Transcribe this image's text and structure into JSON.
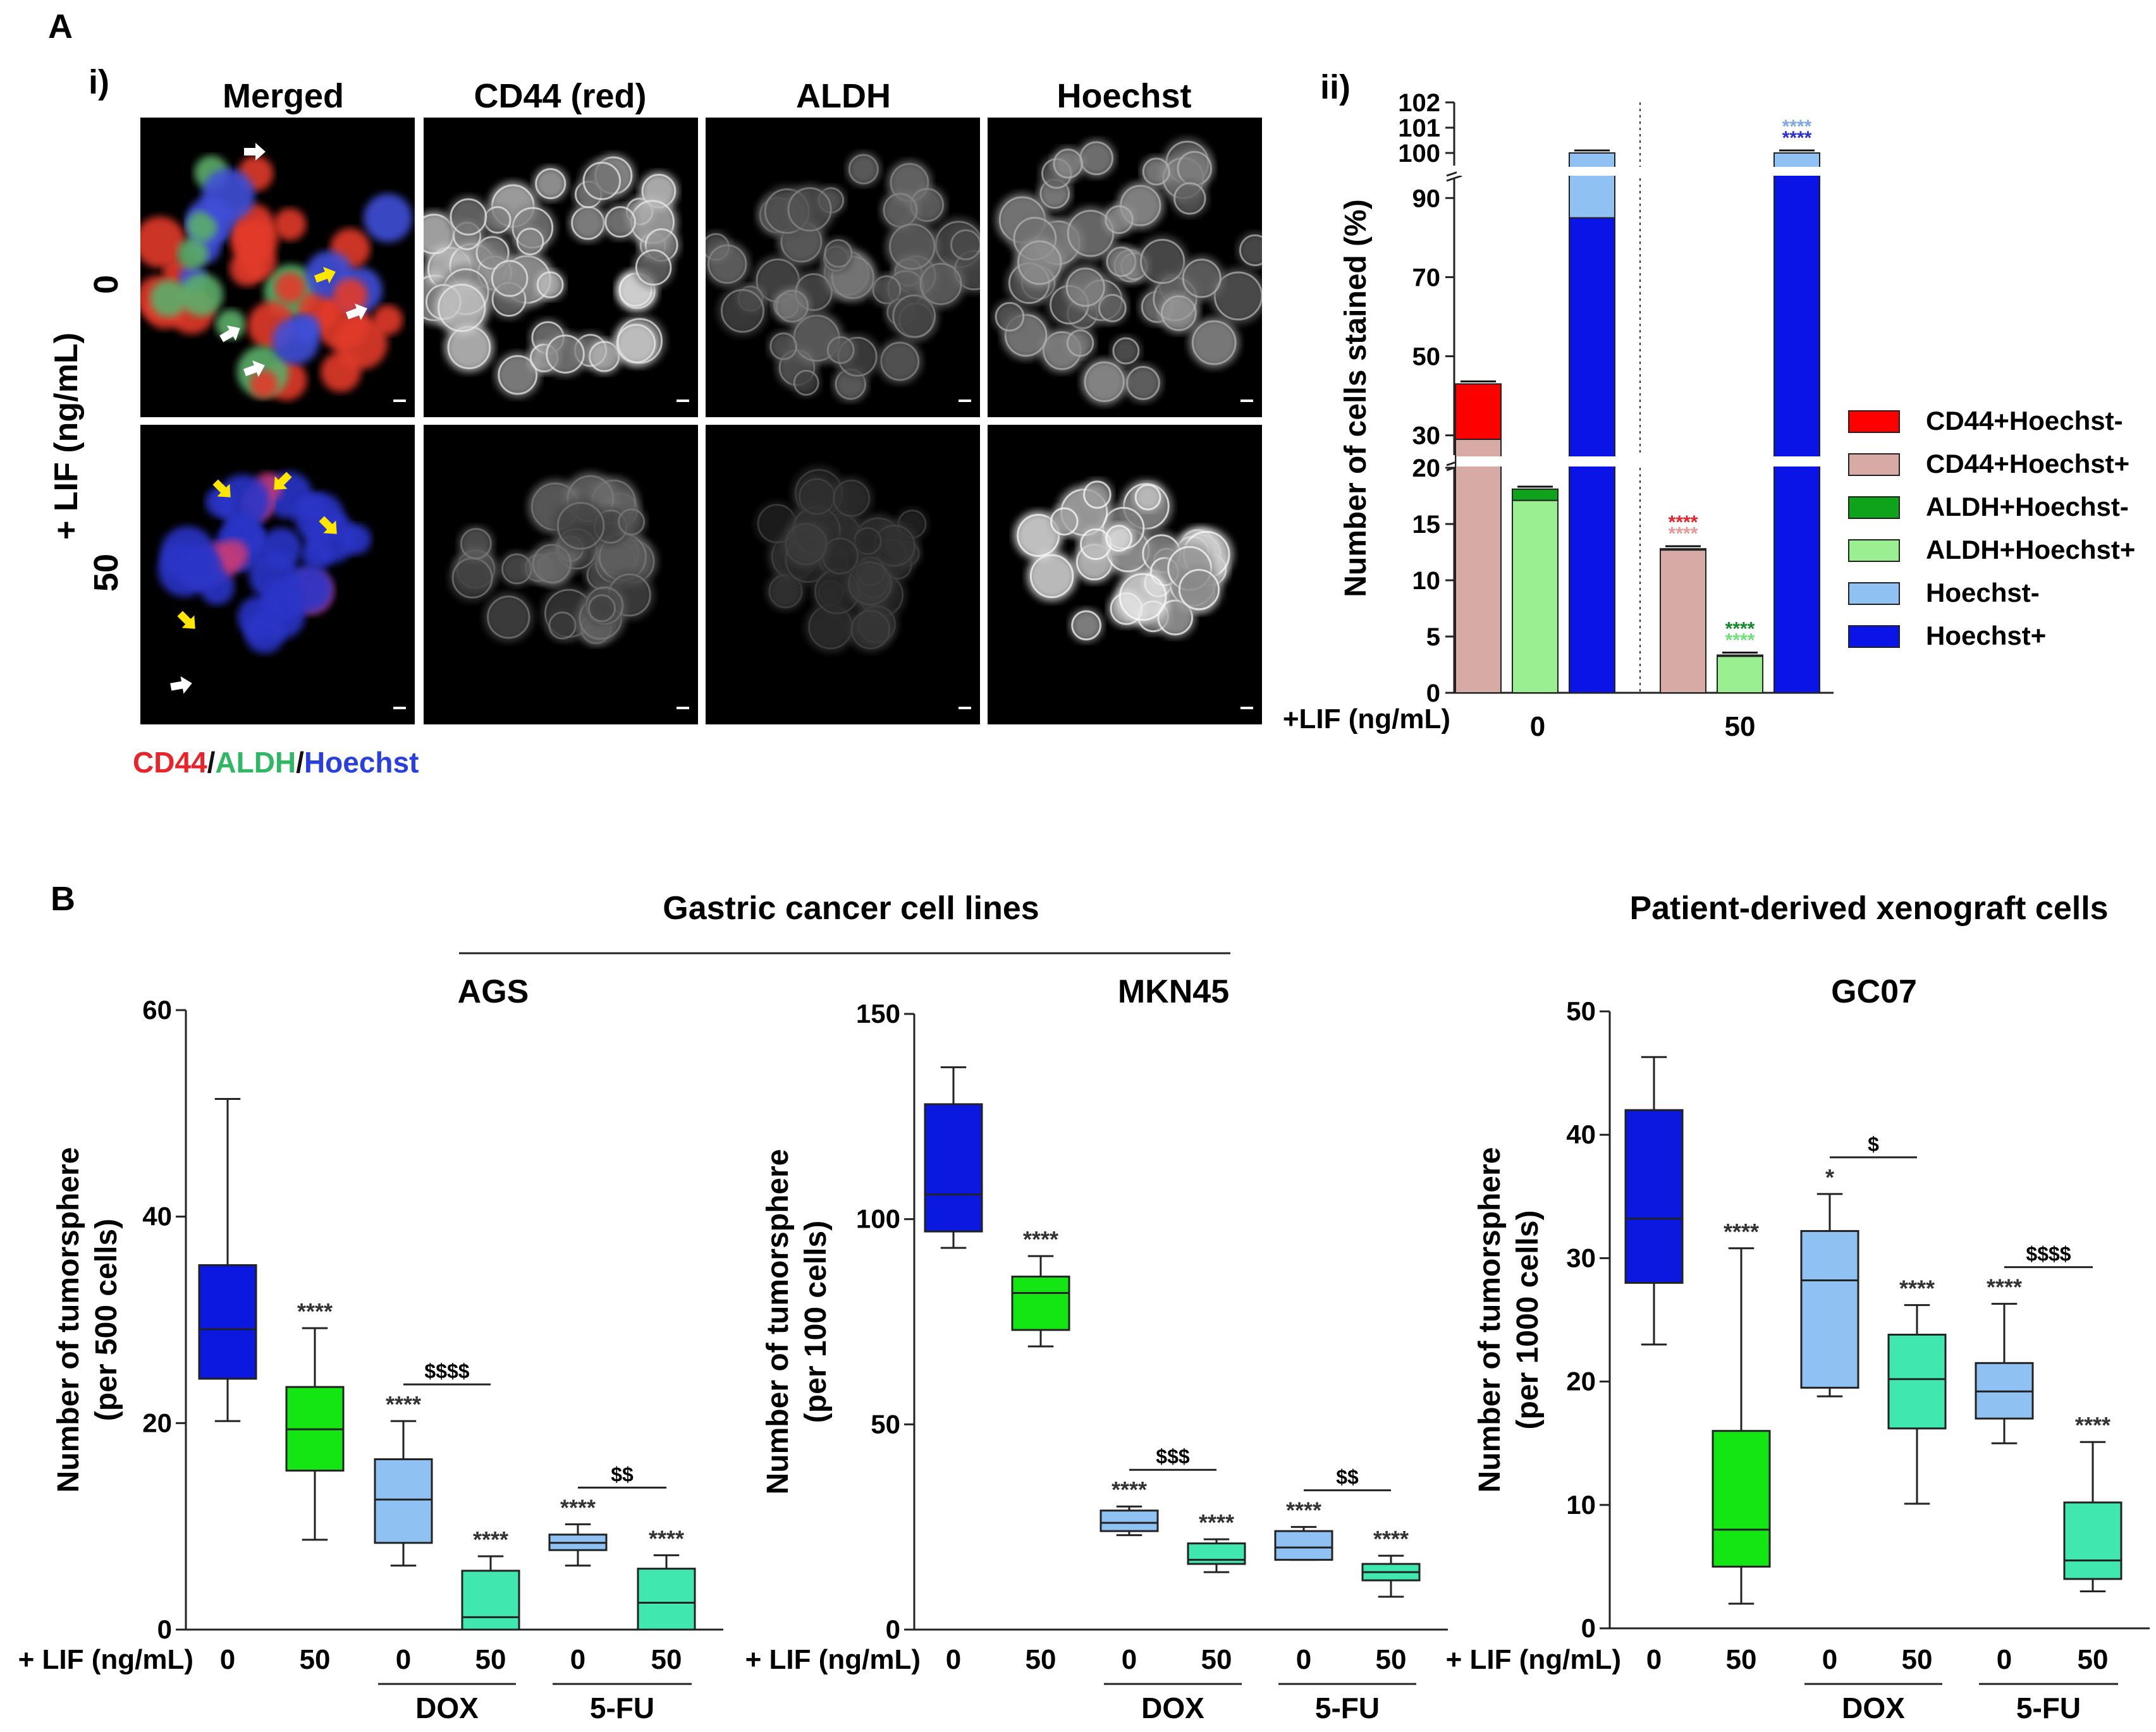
{
  "panelA": {
    "label": "A",
    "sub_i": "i)",
    "sub_ii": "ii)",
    "col_headers": [
      "Merged",
      "CD44 (red)",
      "ALDH",
      "Hoechst"
    ],
    "row_axis_label": "+ LIF (ng/mL)",
    "row_labels": [
      "0",
      "50"
    ],
    "legend_parts": [
      "CD44",
      "/",
      "ALDH",
      "/",
      "Hoechst"
    ],
    "legend_colors": [
      "#e8232a",
      "#111111",
      "#2fb864",
      "#111111",
      "#2a3fe0"
    ]
  },
  "panelB": {
    "label": "B",
    "group1_title": "Gastric cancer cell lines",
    "group2_title": "Patient-derived xenograft cells"
  },
  "chart_data": [
    {
      "id": "A-ii",
      "type": "bar",
      "stacked": true,
      "ylabel": "Number of cells stained (%)",
      "xlabel": "+LIF (ng/mL)",
      "groups": [
        "0",
        "50"
      ],
      "yticks": [
        0,
        5,
        10,
        15,
        20,
        30,
        50,
        70,
        90,
        100,
        101,
        102
      ],
      "axis_breaks": [
        [
          20,
          25
        ],
        [
          95,
          99.5
        ]
      ],
      "bars": [
        {
          "group": "0",
          "stack": [
            {
              "series": "CD44+Hoechst+",
              "value": 29
            },
            {
              "series": "CD44+Hoechst-",
              "value": 14
            }
          ],
          "sig": []
        },
        {
          "group": "0",
          "stack": [
            {
              "series": "ALDH+Hoechst+",
              "value": 17.1
            },
            {
              "series": "ALDH+Hoechst-",
              "value": 1
            }
          ],
          "sig": []
        },
        {
          "group": "0",
          "stack": [
            {
              "series": "Hoechst+",
              "value": 85
            },
            {
              "series": "Hoechst-",
              "value": 15
            }
          ],
          "sig": []
        },
        {
          "group": "50",
          "stack": [
            {
              "series": "CD44+Hoechst+",
              "value": 12.7
            },
            {
              "series": "CD44+Hoechst-",
              "value": 0.1
            }
          ],
          "sig": [
            "****",
            "****"
          ]
        },
        {
          "group": "50",
          "stack": [
            {
              "series": "ALDH+Hoechst+",
              "value": 3.3
            },
            {
              "series": "ALDH+Hoechst-",
              "value": 0.05
            }
          ],
          "sig": [
            "****",
            "****"
          ]
        },
        {
          "group": "50",
          "stack": [
            {
              "series": "Hoechst+",
              "value": 99.2
            },
            {
              "series": "Hoechst-",
              "value": 0.8
            }
          ],
          "sig": [
            "****",
            "****"
          ]
        }
      ],
      "legend": [
        {
          "name": "CD44+Hoechst-",
          "color": "#ff0000"
        },
        {
          "name": "CD44+Hoechst+",
          "color": "#d7aaa6"
        },
        {
          "name": "ALDH+Hoechst-",
          "color": "#0ea31a"
        },
        {
          "name": "ALDH+Hoechst+",
          "color": "#9af090"
        },
        {
          "name": "Hoechst-",
          "color": "#8fc1f2"
        },
        {
          "name": "Hoechst+",
          "color": "#0b14e6"
        }
      ]
    },
    {
      "id": "B-AGS",
      "type": "box",
      "title": "AGS",
      "ylabel": [
        "Number of tumorsphere",
        "(per 500 cells)"
      ],
      "ylim": [
        0,
        60
      ],
      "yticks": [
        0,
        20,
        40,
        60
      ],
      "xprefix": "+ LIF (ng/mL)",
      "categories": [
        "0",
        "50",
        "0",
        "50",
        "0",
        "50"
      ],
      "treatments": [
        "DOX",
        "5-FU"
      ],
      "boxes": [
        {
          "min": 20.2,
          "q1": 24.3,
          "median": 29.1,
          "q3": 35.3,
          "max": 51.4,
          "color": "#0a18e0",
          "sig": ""
        },
        {
          "min": 8.7,
          "q1": 15.4,
          "median": 19.4,
          "q3": 23.5,
          "max": 29.2,
          "color": "#14e614",
          "sig": "****"
        },
        {
          "min": 6.2,
          "q1": 8.4,
          "median": 12.6,
          "q3": 16.5,
          "max": 20.2,
          "color": "#8fc1f2",
          "sig": "****"
        },
        {
          "min": 0,
          "q1": 0,
          "median": 1.2,
          "q3": 5.7,
          "max": 7.1,
          "color": "#40e8b0",
          "sig": "****"
        },
        {
          "min": 6.2,
          "q1": 7.7,
          "median": 8.4,
          "q3": 9.2,
          "max": 10.2,
          "color": "#8fc1f2",
          "sig": "****"
        },
        {
          "min": 0,
          "q1": 0,
          "median": 2.6,
          "q3": 5.9,
          "max": 7.2,
          "color": "#40e8b0",
          "sig": "****"
        }
      ],
      "brackets": [
        {
          "pair": [
            2,
            3
          ],
          "label": "$$$$"
        },
        {
          "pair": [
            4,
            5
          ],
          "label": "$$"
        }
      ]
    },
    {
      "id": "B-MKN45",
      "type": "box",
      "title": "MKN45",
      "ylabel": [
        "Number of tumorsphere",
        "(per 100 cells)"
      ],
      "ylim": [
        0,
        150
      ],
      "yticks": [
        0,
        50,
        100,
        150
      ],
      "xprefix": "+ LIF (ng/mL)",
      "categories": [
        "0",
        "50",
        "0",
        "50",
        "0",
        "50"
      ],
      "treatments": [
        "DOX",
        "5-FU"
      ],
      "boxes": [
        {
          "min": 93,
          "q1": 97,
          "median": 106,
          "q3": 128,
          "max": 137,
          "color": "#0a18e0",
          "sig": ""
        },
        {
          "min": 69,
          "q1": 73,
          "median": 82,
          "q3": 86,
          "max": 91,
          "color": "#14e614",
          "sig": "****"
        },
        {
          "min": 23,
          "q1": 24,
          "median": 26,
          "q3": 29,
          "max": 30,
          "color": "#8fc1f2",
          "sig": "****"
        },
        {
          "min": 14,
          "q1": 16,
          "median": 17,
          "q3": 21,
          "max": 22,
          "color": "#40e8b0",
          "sig": "****"
        },
        {
          "min": 17,
          "q1": 17,
          "median": 20,
          "q3": 24,
          "max": 25,
          "color": "#8fc1f2",
          "sig": "****"
        },
        {
          "min": 8,
          "q1": 12,
          "median": 14,
          "q3": 16,
          "max": 18,
          "color": "#40e8b0",
          "sig": "****"
        }
      ],
      "brackets": [
        {
          "pair": [
            2,
            3
          ],
          "label": "$$$"
        },
        {
          "pair": [
            4,
            5
          ],
          "label": "$$"
        }
      ]
    },
    {
      "id": "B-GC07",
      "type": "box",
      "title": "GC07",
      "ylabel": [
        "Number of tumorsphere",
        "(per 1000 cells)"
      ],
      "ylim": [
        0,
        50
      ],
      "yticks": [
        0,
        10,
        20,
        30,
        40,
        50
      ],
      "xprefix": "+ LIF (ng/mL)",
      "categories": [
        "0",
        "50",
        "0",
        "50",
        "0",
        "50"
      ],
      "treatments": [
        "DOX",
        "5-FU"
      ],
      "boxes": [
        {
          "min": 23,
          "q1": 28,
          "median": 33.2,
          "q3": 42,
          "max": 46.3,
          "color": "#0a18e0",
          "sig": ""
        },
        {
          "min": 2,
          "q1": 5,
          "median": 8,
          "q3": 16,
          "max": 30.8,
          "color": "#14e614",
          "sig": "****"
        },
        {
          "min": 18.8,
          "q1": 19.5,
          "median": 28.2,
          "q3": 32.2,
          "max": 35.2,
          "color": "#8fc1f2",
          "sig": "*"
        },
        {
          "min": 10.1,
          "q1": 16.2,
          "median": 20.2,
          "q3": 23.8,
          "max": 26.2,
          "color": "#40e8b0",
          "sig": "****"
        },
        {
          "min": 15,
          "q1": 17,
          "median": 19.2,
          "q3": 21.5,
          "max": 26.3,
          "color": "#8fc1f2",
          "sig": "****"
        },
        {
          "min": 3,
          "q1": 4,
          "median": 5.5,
          "q3": 10.2,
          "max": 15.1,
          "color": "#40e8b0",
          "sig": "****"
        }
      ],
      "brackets": [
        {
          "pair": [
            2,
            3
          ],
          "label": "$"
        },
        {
          "pair": [
            4,
            5
          ],
          "label": "$$$$"
        }
      ]
    }
  ]
}
